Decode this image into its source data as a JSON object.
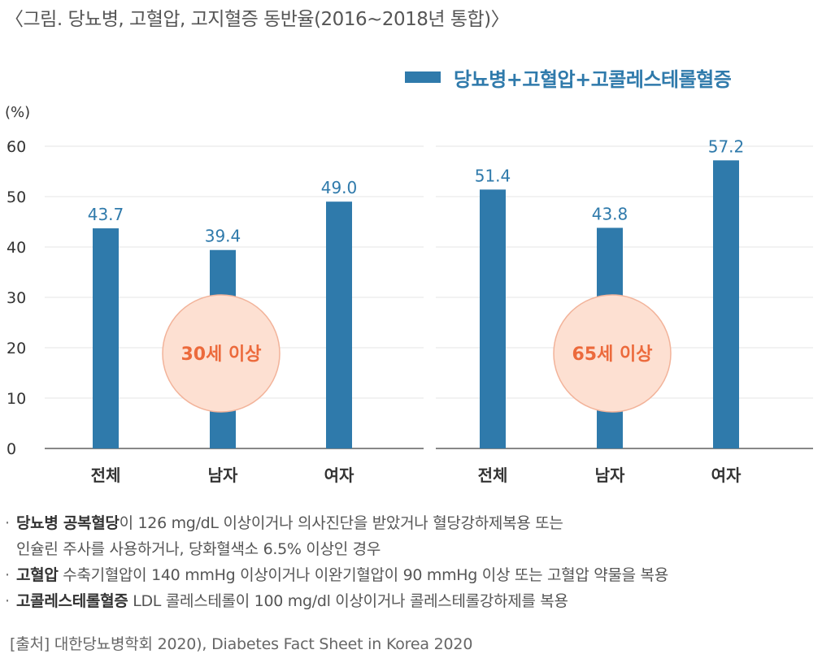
{
  "title": "〈그림. 당뇨병, 고혈압, 고지혈증 동반율(2016~2018년 통합)〉",
  "legend": {
    "label": "당뇨병+고혈압+고콜레스테롤혈증",
    "color": "#2f7aab"
  },
  "chart_data": [
    {
      "type": "bar",
      "panel_label": "30세 이상",
      "categories": [
        "전체",
        "남자",
        "여자"
      ],
      "series": [
        {
          "name": "당뇨병+고혈압+고콜레스테롤혈증",
          "values": [
            43.7,
            39.4,
            49.0
          ]
        }
      ],
      "value_labels": [
        "43.7",
        "39.4",
        "49.0"
      ],
      "ylabel": "(%)",
      "ylim": [
        0,
        60
      ],
      "yticks": [
        "0",
        "10",
        "20",
        "30",
        "40",
        "50",
        "60"
      ],
      "grid": true
    },
    {
      "type": "bar",
      "panel_label": "65세 이상",
      "categories": [
        "전체",
        "남자",
        "여자"
      ],
      "series": [
        {
          "name": "당뇨병+고혈압+고콜레스테롤혈증",
          "values": [
            51.4,
            43.8,
            57.2
          ]
        }
      ],
      "value_labels": [
        "51.4",
        "43.8",
        "57.2"
      ],
      "ylim": [
        0,
        60
      ],
      "grid": true
    }
  ],
  "colors": {
    "bar": "#2f7aab",
    "badge_fill": "#fde0d2",
    "badge_stroke": "#f2b39a",
    "badge_text": "#ec6a3c",
    "grid": "#e6e6e6",
    "axis": "#888888"
  },
  "notes": [
    {
      "term": "당뇨병 공복혈당",
      "text": "이 126 mg/dL 이상이거나 의사진단을 받았거나 혈당강하제복용 또는",
      "continuation": "인슐린 주사를 사용하거나, 당화혈색소 6.5% 이상인 경우"
    },
    {
      "term": "고혈압",
      "text": " 수축기혈압이 140 mmHg 이상이거나 이완기혈압이 90 mmHg 이상 또는 고혈압 약물을 복용"
    },
    {
      "term": "고콜레스테롤혈증",
      "text": " LDL 콜레스테롤이 100 mg/dl 이상이거나 콜레스테롤강하제를 복용"
    }
  ],
  "source": "[출처] 대한당뇨병학회 2020), Diabetes Fact Sheet in Korea 2020"
}
